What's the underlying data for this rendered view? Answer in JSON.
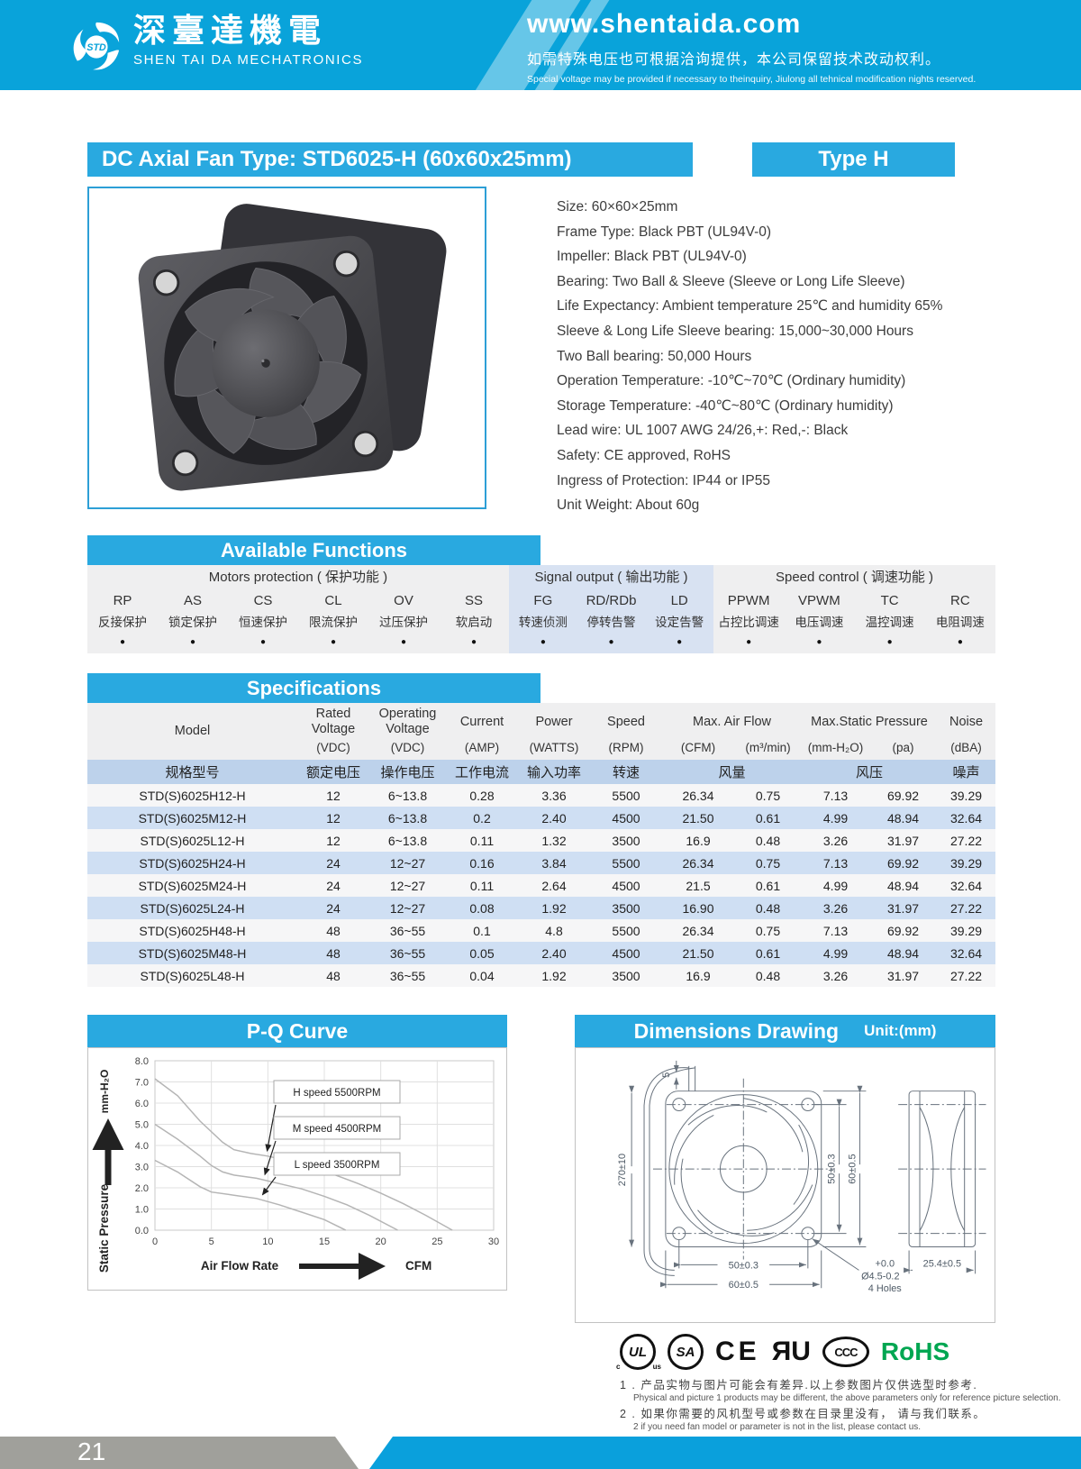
{
  "page": {
    "number": "21"
  },
  "header": {
    "logo_icon": "STD",
    "company_cn": "深臺達機電",
    "company_en": "SHEN TAI DA MECHATRONICS",
    "website": "www.shentaida.com",
    "slogan_cn": "如需特殊电压也可根据洽询提供，本公司保留技术改动权利。",
    "slogan_en": "Special voltage may be provided if necessary to theinquiry, Jiulong all tehnical modification nights reserved."
  },
  "title": {
    "main": "DC Axial Fan  Type: STD6025-H (60x60x25mm)",
    "badge": "Type H"
  },
  "product_info": [
    "Size: 60×60×25mm",
    "Frame Type: Black PBT (UL94V-0)",
    "Impeller: Black PBT (UL94V-0)",
    "Bearing: Two Ball & Sleeve (Sleeve or Long Life Sleeve)",
    "Life Expectancy: Ambient temperature 25℃ and humidity 65%",
    "Sleeve & Long Life Sleeve bearing: 15,000~30,000 Hours",
    "Two Ball bearing: 50,000 Hours",
    "Operation Temperature: -10℃~70℃ (Ordinary humidity)",
    "Storage Temperature: -40℃~80℃ (Ordinary humidity)",
    "Lead wire: UL 1007 AWG 24/26,+: Red,-: Black",
    "Safety: CE approved, RoHS",
    "Ingress of Protection: IP44 or IP55",
    "Unit Weight: About 60g"
  ],
  "functions": {
    "title": "Available Functions",
    "bullet": "●",
    "groups": [
      {
        "name": "Motors protection ( 保护功能 )",
        "items": [
          {
            "code": "RP",
            "cn": "反接保护"
          },
          {
            "code": "AS",
            "cn": "锁定保护"
          },
          {
            "code": "CS",
            "cn": "恒速保护"
          },
          {
            "code": "CL",
            "cn": "限流保护"
          },
          {
            "code": "OV",
            "cn": "过压保护"
          },
          {
            "code": "SS",
            "cn": "软启动"
          }
        ]
      },
      {
        "name": "Signal output ( 输出功能 )",
        "items": [
          {
            "code": "FG",
            "cn": "转速侦测"
          },
          {
            "code": "RD/RDb",
            "cn": "停转告警"
          },
          {
            "code": "LD",
            "cn": "设定告警"
          }
        ]
      },
      {
        "name": "Speed control ( 调速功能 )",
        "items": [
          {
            "code": "PPWM",
            "cn": "占控比调速"
          },
          {
            "code": "VPWM",
            "cn": "电压调速"
          },
          {
            "code": "TC",
            "cn": "温控调速"
          },
          {
            "code": "RC",
            "cn": "电阻调速"
          }
        ]
      }
    ]
  },
  "specs": {
    "title": "Specifications",
    "headers": {
      "model": "Model",
      "rated": "Rated\nVoltage",
      "operating": "Operating\nVoltage",
      "current": "Current",
      "power": "Power",
      "speed": "Speed",
      "airflow": "Max. Air Flow",
      "pressure": "Max.Static Pressure",
      "noise": "Noise",
      "u_vdc1": "(VDC)",
      "u_vdc2": "(VDC)",
      "u_amp": "(AMP)",
      "u_watts": "(WATTS)",
      "u_rpm": "(RPM)",
      "u_cfm": "(CFM)",
      "u_m3min": "(m³/min)",
      "u_mmh2o": "(mm-H₂O)",
      "u_pa": "(pa)",
      "u_dba": "(dBA)"
    },
    "headers_cn": [
      "规格型号",
      "额定电压",
      "操作电压",
      "工作电流",
      "输入功率",
      "转速",
      "风量",
      "风压",
      "噪声"
    ],
    "rows": [
      [
        "STD(S)6025H12-H",
        "12",
        "6~13.8",
        "0.28",
        "3.36",
        "5500",
        "26.34",
        "0.75",
        "7.13",
        "69.92",
        "39.29"
      ],
      [
        "STD(S)6025M12-H",
        "12",
        "6~13.8",
        "0.2",
        "2.40",
        "4500",
        "21.50",
        "0.61",
        "4.99",
        "48.94",
        "32.64"
      ],
      [
        "STD(S)6025L12-H",
        "12",
        "6~13.8",
        "0.11",
        "1.32",
        "3500",
        "16.9",
        "0.48",
        "3.26",
        "31.97",
        "27.22"
      ],
      [
        "STD(S)6025H24-H",
        "24",
        "12~27",
        "0.16",
        "3.84",
        "5500",
        "26.34",
        "0.75",
        "7.13",
        "69.92",
        "39.29"
      ],
      [
        "STD(S)6025M24-H",
        "24",
        "12~27",
        "0.11",
        "2.64",
        "4500",
        "21.5",
        "0.61",
        "4.99",
        "48.94",
        "32.64"
      ],
      [
        "STD(S)6025L24-H",
        "24",
        "12~27",
        "0.08",
        "1.92",
        "3500",
        "16.90",
        "0.48",
        "3.26",
        "31.97",
        "27.22"
      ],
      [
        "STD(S)6025H48-H",
        "48",
        "36~55",
        "0.1",
        "4.8",
        "5500",
        "26.34",
        "0.75",
        "7.13",
        "69.92",
        "39.29"
      ],
      [
        "STD(S)6025M48-H",
        "48",
        "36~55",
        "0.05",
        "2.40",
        "4500",
        "21.50",
        "0.61",
        "4.99",
        "48.94",
        "32.64"
      ],
      [
        "STD(S)6025L48-H",
        "48",
        "36~55",
        "0.04",
        "1.92",
        "3500",
        "16.9",
        "0.48",
        "3.26",
        "31.97",
        "27.22"
      ]
    ]
  },
  "chart_data": {
    "type": "line",
    "title": "P-Q Curve",
    "xlabel": "Air  Flow  Rate",
    "xunit": "CFM",
    "ylabel": "Static  Pressure",
    "yunit": "mm-H₂O",
    "xlim": [
      0,
      30
    ],
    "ylim": [
      0,
      8
    ],
    "xticks": [
      0,
      5,
      10,
      15,
      20,
      25,
      30
    ],
    "yticks": [
      0.0,
      1.0,
      2.0,
      3.0,
      4.0,
      5.0,
      6.0,
      7.0,
      8.0
    ],
    "grid": true,
    "legend_position": "inside-right",
    "series": [
      {
        "name": "H speed 5500RPM",
        "points": [
          [
            0,
            7.15
          ],
          [
            2,
            6.35
          ],
          [
            4,
            5.15
          ],
          [
            6,
            4.15
          ],
          [
            7,
            3.8
          ],
          [
            8.5,
            3.62
          ],
          [
            10,
            3.5
          ],
          [
            12,
            3.25
          ],
          [
            14,
            2.95
          ],
          [
            16,
            2.6
          ],
          [
            18,
            2.2
          ],
          [
            20,
            1.75
          ],
          [
            22,
            1.25
          ],
          [
            24,
            0.7
          ],
          [
            26.34,
            0
          ]
        ]
      },
      {
        "name": "M speed 4500RPM",
        "points": [
          [
            0,
            5.0
          ],
          [
            2,
            4.3
          ],
          [
            4,
            3.5
          ],
          [
            5,
            3.05
          ],
          [
            6,
            2.75
          ],
          [
            7,
            2.6
          ],
          [
            9,
            2.45
          ],
          [
            11,
            2.2
          ],
          [
            13,
            1.95
          ],
          [
            15,
            1.6
          ],
          [
            17,
            1.2
          ],
          [
            19,
            0.7
          ],
          [
            21.5,
            0
          ]
        ]
      },
      {
        "name": "L speed 3500RPM",
        "points": [
          [
            0,
            3.3
          ],
          [
            2,
            2.75
          ],
          [
            4,
            2.05
          ],
          [
            5,
            1.8
          ],
          [
            7,
            1.65
          ],
          [
            9,
            1.5
          ],
          [
            11,
            1.2
          ],
          [
            13,
            0.85
          ],
          [
            15,
            0.5
          ],
          [
            16.9,
            0
          ]
        ]
      }
    ],
    "legend_arrow_targets": [
      [
        9.7,
        3.62
      ],
      [
        9.5,
        2.5
      ],
      [
        9.3,
        1.55
      ]
    ]
  },
  "dimensions": {
    "title": "Dimensions Drawing",
    "unit": "Unit:(mm)",
    "labels": {
      "wire_pitch": "5",
      "lead_length": "270±10",
      "hole_pitch_v": "50±0.3",
      "frame_height": "60±0.5",
      "hole_pitch_h": "50±0.3",
      "frame_width": "60±0.5",
      "hole_tol_plus": "+0.0",
      "hole_dia": "Ø4.5-0.2",
      "hole_count": "4 Holes",
      "depth": "25.4±0.5"
    }
  },
  "certs": {
    "ul": "UL",
    "ul_c": "c",
    "ul_us": "us",
    "csa": "SA",
    "ce": "CE",
    "ul_recognized": "ЯU",
    "ccc": "CCC",
    "rohs": "RoHS"
  },
  "notes": [
    {
      "cn": "1 . 产品实物与图片可能会有差异.以上参数图片仅供选型时参考.",
      "en": "Physical and picture 1 products may be different, the above parameters only for reference picture selection."
    },
    {
      "cn": "2 . 如果你需要的风机型号或参数在目录里没有， 请与我们联系。",
      "en": "2 if you need fan model or parameter is not in the list, please contact us."
    }
  ]
}
